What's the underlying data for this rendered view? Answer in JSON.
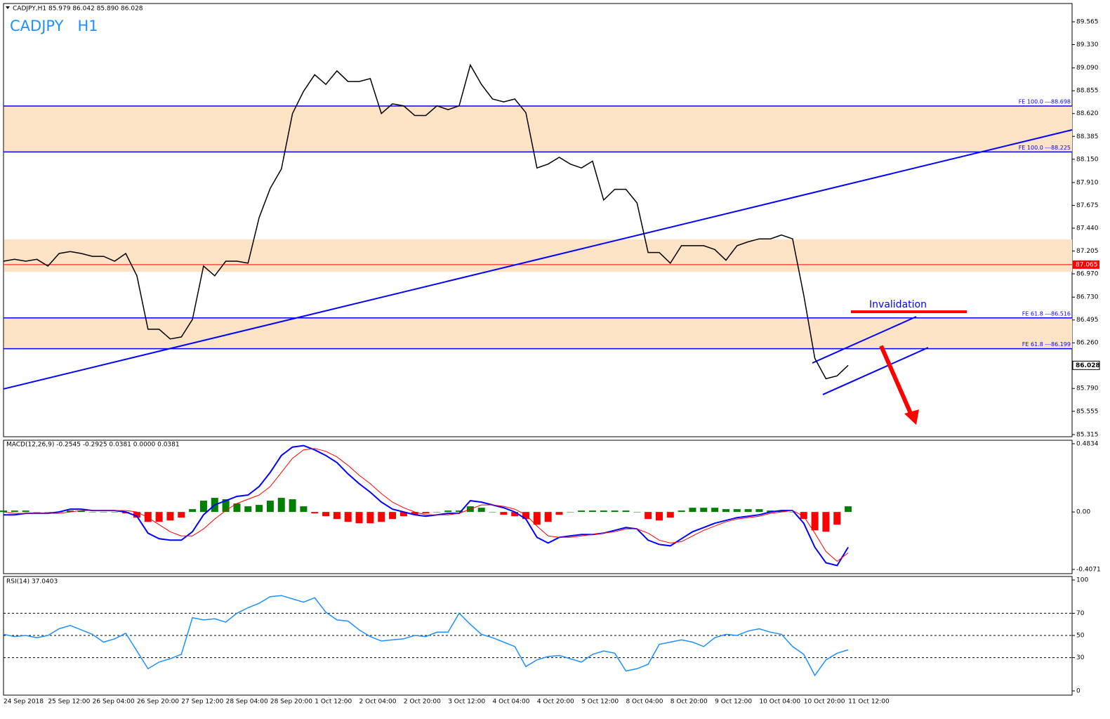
{
  "chart_data": [
    {
      "type": "price",
      "title": "CADJPY,H1  85.979 86.042 85.890 86.028",
      "label": "CADJPY   H1",
      "categories": [
        "24 Sep 2018",
        null,
        null,
        null,
        "25 Sep 12:00",
        null,
        null,
        null,
        "26 Sep 04:00",
        null,
        null,
        null,
        "26 Sep 20:00",
        null,
        null,
        null,
        "27 Sep 12:00",
        null,
        null,
        null,
        "28 Sep 04:00",
        null,
        null,
        null,
        "28 Sep 20:00",
        null,
        null,
        null,
        "1 Oct 12:00",
        null,
        null,
        null,
        "2 Oct 04:00",
        null,
        null,
        null,
        "2 Oct 20:00",
        null,
        null,
        null,
        "3 Oct 12:00",
        null,
        null,
        null,
        "4 Oct 04:00",
        null,
        null,
        null,
        "4 Oct 20:00",
        null,
        null,
        null,
        "5 Oct 12:00",
        null,
        null,
        null,
        "8 Oct 04:00",
        null,
        null,
        null,
        "8 Oct 20:00",
        null,
        null,
        null,
        "9 Oct 12:00",
        null,
        null,
        null,
        "10 Oct 04:00",
        null,
        null,
        null,
        "10 Oct 20:00",
        null,
        null,
        null,
        "11 Oct 12:00"
      ],
      "values": [
        87.1,
        87.12,
        87.1,
        87.12,
        87.05,
        87.18,
        87.2,
        87.18,
        87.15,
        87.15,
        87.1,
        87.18,
        86.95,
        86.4,
        86.4,
        86.3,
        86.32,
        86.5,
        87.05,
        86.95,
        87.1,
        87.1,
        87.08,
        87.55,
        87.85,
        88.05,
        88.62,
        88.85,
        89.02,
        88.92,
        89.06,
        88.95,
        88.95,
        88.98,
        88.62,
        88.72,
        88.7,
        88.6,
        88.6,
        88.7,
        88.66,
        88.7,
        89.12,
        88.92,
        88.77,
        88.74,
        88.77,
        88.63,
        88.06,
        88.1,
        88.17,
        88.1,
        88.06,
        88.13,
        87.73,
        87.84,
        87.84,
        87.7,
        87.19,
        87.19,
        87.08,
        87.26,
        87.26,
        87.26,
        87.22,
        87.11,
        87.26,
        87.3,
        87.33,
        87.33,
        87.37,
        87.33,
        86.75,
        86.1,
        85.89,
        85.92,
        86.028
      ],
      "color": "#000000",
      "zones": [
        [
          88.225,
          88.698
        ],
        [
          86.99,
          87.325
        ],
        [
          86.199,
          86.516
        ]
      ],
      "zone_color": "#fde3c5",
      "levels": [
        {
          "label": "FE 100.0 ---88.698",
          "value": 88.698
        },
        {
          "label": "FE 100.0 ---88.225",
          "value": 88.225
        },
        {
          "label": "FE 61.8 ---86.516",
          "value": 86.516
        },
        {
          "label": "FE 61.8 ---86.199",
          "value": 86.199
        }
      ],
      "level_color": "#0000ff",
      "price_line": 87.065,
      "price_line_color": "#ff0000",
      "last_price": 86.028,
      "trendlines": [
        [
          85.785,
          88.452
        ],
        [
          86.052,
          86.529
        ],
        [
          85.727,
          86.211
        ]
      ],
      "annotation": {
        "text": "Invalidation",
        "value": 86.58,
        "color": "#ff0000"
      },
      "arrow": [
        86.228,
        85.415
      ],
      "ylim": [
        85.293,
        89.753
      ],
      "yticks": [
        89.565,
        {
          "value": 89.33,
          "label": "89.330"
        },
        {
          "value": 89.09,
          "label": "89.090"
        },
        88.855,
        {
          "value": 88.62,
          "label": "88.620"
        },
        88.385,
        {
          "value": 88.15,
          "label": "88.150"
        },
        {
          "value": 87.91,
          "label": "87.910"
        },
        87.675,
        {
          "value": 87.44,
          "label": "87.440"
        },
        87.205,
        {
          "value": 86.97,
          "label": "86.970"
        },
        {
          "value": 86.73,
          "label": "86.730"
        },
        86.495,
        {
          "value": 86.26,
          "label": "86.260"
        },
        {
          "value": 85.79,
          "label": "85.790"
        },
        85.555,
        85.315
      ]
    },
    {
      "type": "macd",
      "title": "MACD(12,26,9) -0.2545 -0.2925 0.0381 0.0000 0.0381",
      "series": [
        {
          "color": "#0000ff",
          "values": [
            -0.02,
            -0.02,
            -0.01,
            -0.01,
            -0.01,
            0.0,
            0.02,
            0.02,
            0.01,
            0.01,
            0.01,
            0.0,
            -0.03,
            -0.15,
            -0.19,
            -0.2,
            -0.2,
            -0.14,
            -0.02,
            0.05,
            0.08,
            0.11,
            0.12,
            0.18,
            0.28,
            0.4,
            0.46,
            0.47,
            0.44,
            0.4,
            0.35,
            0.27,
            0.2,
            0.14,
            0.07,
            0.02,
            0.0,
            -0.02,
            -0.03,
            -0.02,
            -0.01,
            -0.01,
            0.08,
            0.07,
            0.05,
            0.03,
            0.0,
            -0.05,
            -0.18,
            -0.22,
            -0.18,
            -0.17,
            -0.16,
            -0.16,
            -0.15,
            -0.13,
            -0.11,
            -0.12,
            -0.2,
            -0.23,
            -0.24,
            -0.19,
            -0.14,
            -0.11,
            -0.08,
            -0.06,
            -0.04,
            -0.03,
            -0.02,
            0.0,
            0.01,
            0.01,
            -0.08,
            -0.25,
            -0.36,
            -0.38,
            -0.25
          ]
        },
        {
          "color": "#ff0000",
          "values": [
            0.0,
            -0.01,
            -0.01,
            -0.01,
            -0.01,
            -0.01,
            0.0,
            0.01,
            0.01,
            0.01,
            0.01,
            0.01,
            0.0,
            -0.04,
            -0.09,
            -0.14,
            -0.17,
            -0.17,
            -0.12,
            -0.05,
            0.01,
            0.06,
            0.09,
            0.12,
            0.18,
            0.28,
            0.38,
            0.44,
            0.45,
            0.43,
            0.39,
            0.33,
            0.26,
            0.2,
            0.13,
            0.07,
            0.03,
            0.0,
            -0.02,
            -0.02,
            -0.02,
            -0.01,
            0.02,
            0.05,
            0.05,
            0.04,
            0.02,
            -0.02,
            -0.1,
            -0.17,
            -0.18,
            -0.18,
            -0.17,
            -0.16,
            -0.15,
            -0.14,
            -0.12,
            -0.12,
            -0.15,
            -0.2,
            -0.22,
            -0.21,
            -0.17,
            -0.13,
            -0.1,
            -0.07,
            -0.05,
            -0.04,
            -0.03,
            -0.01,
            0.0,
            0.01,
            -0.03,
            -0.15,
            -0.28,
            -0.35,
            -0.29
          ]
        }
      ],
      "histogram": {
        "up_color": "#008000",
        "down_color": "#ff0000",
        "values": [
          0.01,
          0.01,
          0.01,
          0.0,
          0.0,
          0.0,
          0.01,
          0.01,
          0.0,
          0.0,
          0.0,
          -0.01,
          -0.04,
          -0.07,
          -0.07,
          -0.06,
          -0.04,
          0.02,
          0.08,
          0.1,
          0.09,
          0.06,
          0.04,
          0.05,
          0.08,
          0.1,
          0.09,
          0.04,
          -0.01,
          -0.03,
          -0.05,
          -0.07,
          -0.08,
          -0.08,
          -0.07,
          -0.05,
          -0.03,
          -0.02,
          -0.01,
          0.0,
          0.01,
          0.01,
          0.04,
          0.03,
          0.0,
          -0.02,
          -0.03,
          -0.05,
          -0.09,
          -0.07,
          -0.02,
          0.0,
          0.01,
          0.01,
          0.01,
          0.01,
          0.01,
          0.0,
          -0.05,
          -0.06,
          -0.04,
          0.01,
          0.03,
          0.03,
          0.03,
          0.02,
          0.02,
          0.02,
          0.02,
          0.01,
          0.01,
          0.0,
          -0.05,
          -0.13,
          -0.14,
          -0.09,
          0.04
        ]
      },
      "ylim": [
        -0.437,
        0.508
      ],
      "yticks": [
        0.4834,
        {
          "value": 0,
          "label": "0.00"
        },
        -0.4071
      ]
    },
    {
      "type": "rsi",
      "title": "RSI(14) 37.0403",
      "color": "#1e90ff",
      "values": [
        51,
        49,
        50,
        48,
        50,
        56,
        59,
        55,
        51,
        44,
        47,
        52,
        36,
        20,
        26,
        29,
        33,
        66,
        64,
        65,
        62,
        70,
        75,
        79,
        85,
        86,
        83,
        80,
        84,
        71,
        64,
        63,
        55,
        49,
        45,
        46,
        47,
        50,
        49,
        53,
        53,
        70,
        60,
        51,
        48,
        44,
        40,
        22,
        28,
        31,
        32,
        29,
        26,
        33,
        36,
        34,
        18,
        20,
        24,
        42,
        44,
        46,
        44,
        40,
        48,
        51,
        50,
        54,
        56,
        53,
        51,
        40,
        33,
        14,
        28,
        34,
        37.0403
      ],
      "levels": [
        70,
        50,
        30
      ],
      "ylim": [
        -3.8,
        103.2
      ],
      "yticks": [
        100,
        70,
        50,
        30,
        0
      ]
    }
  ]
}
